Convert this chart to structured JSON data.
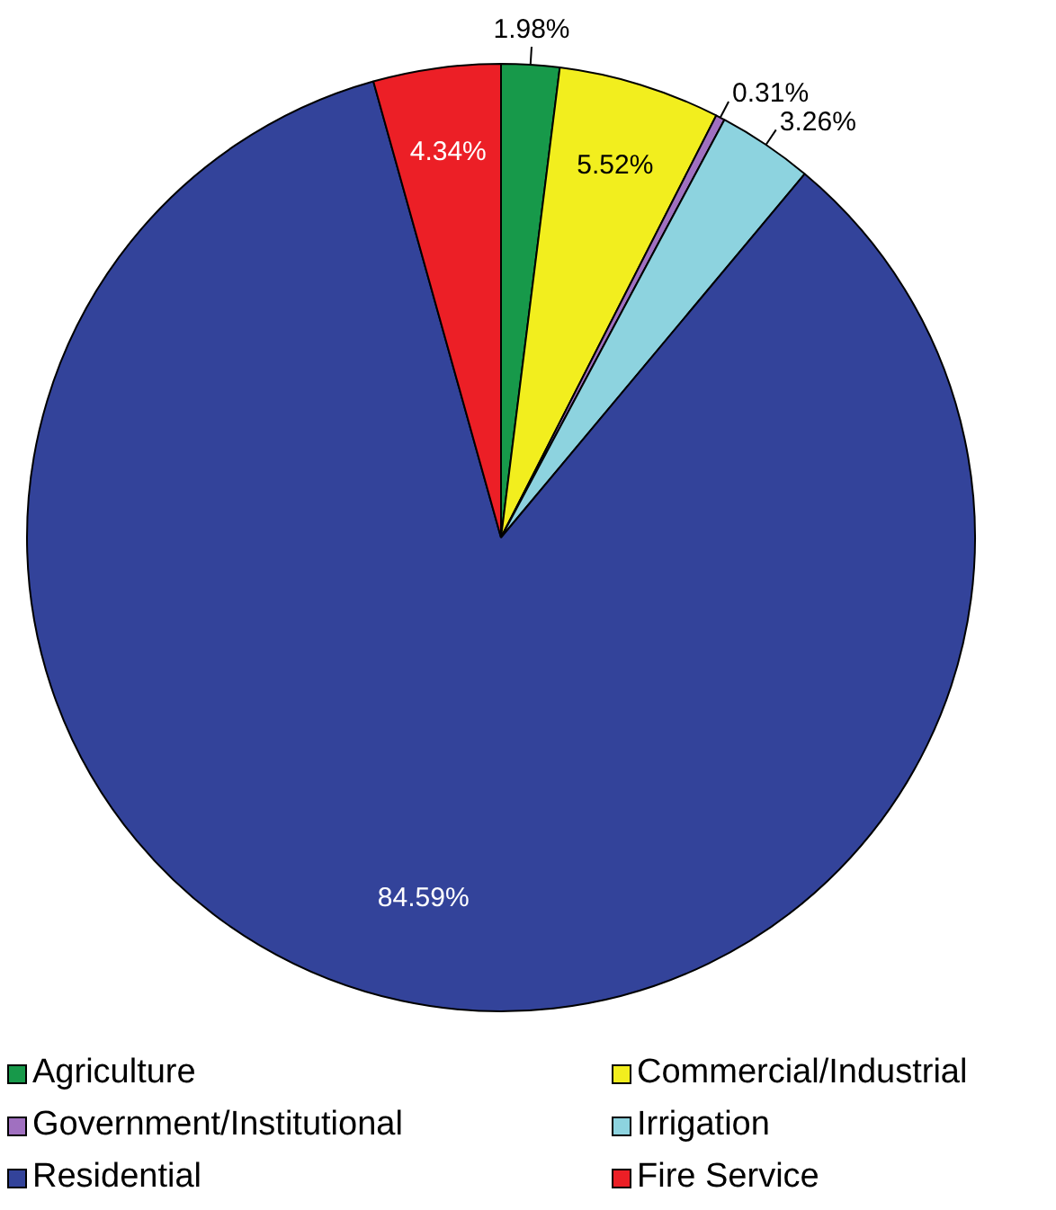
{
  "chart_data": {
    "type": "pie",
    "categories": [
      "Agriculture",
      "Commercial/Industrial",
      "Government/Institutional",
      "Irrigation",
      "Residential",
      "Fire Service"
    ],
    "values": [
      1.98,
      5.52,
      0.31,
      3.26,
      84.59,
      4.34
    ],
    "colors": [
      "#17994a",
      "#f2ee1e",
      "#a070c0",
      "#8dd3df",
      "#33439a",
      "#ec1f26"
    ],
    "value_labels": [
      "1.98%",
      "5.52%",
      "0.31%",
      "3.26%",
      "84.59%",
      "4.34%"
    ],
    "legend": "bottom"
  }
}
